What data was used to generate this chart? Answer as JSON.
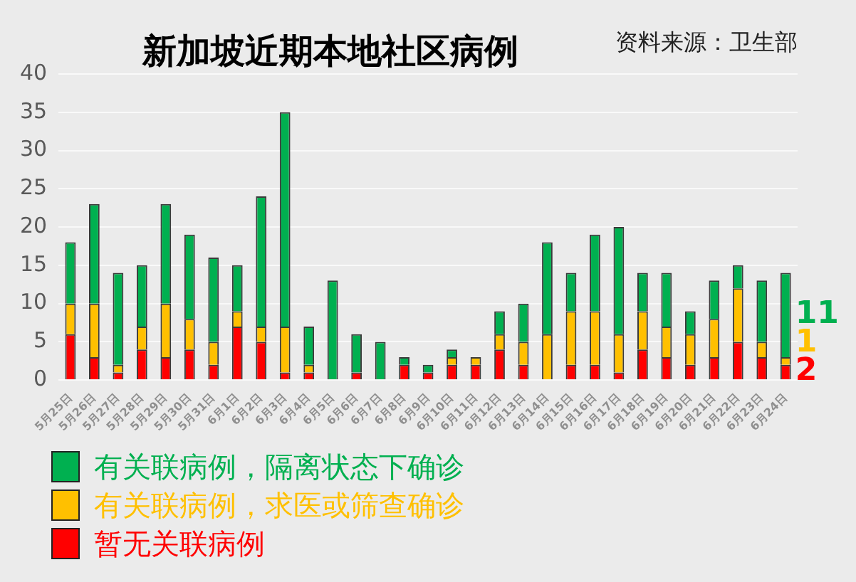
{
  "chart_data": {
    "type": "bar",
    "title": "新加坡近期本地社区病例",
    "annotations": [
      "资料来源：卫生部"
    ],
    "categories": [
      "5月25日",
      "5月26日",
      "5月27日",
      "5月28日",
      "5月29日",
      "5月30日",
      "5月31日",
      "6月1日",
      "6月2日",
      "6月3日",
      "6月4日",
      "6月5日",
      "6月6日",
      "6月7日",
      "6月8日",
      "6月9日",
      "6月10日",
      "6月11日",
      "6月12日",
      "6月13日",
      "6月14日",
      "6月15日",
      "6月16日",
      "6月17日",
      "6月18日",
      "6月19日",
      "6月20日",
      "6月21日",
      "6月22日",
      "6月23日",
      "6月24日"
    ],
    "stacked": true,
    "series": [
      {
        "name": "暂无关联病例",
        "color": "#ff0000",
        "values": [
          6,
          3,
          1,
          4,
          3,
          4,
          2,
          7,
          5,
          1,
          1,
          0,
          1,
          0,
          2,
          1,
          2,
          2,
          4,
          2,
          0,
          2,
          2,
          1,
          4,
          3,
          2,
          3,
          5,
          3,
          2
        ],
        "value_labels": [
          null,
          null,
          null,
          null,
          null,
          null,
          null,
          null,
          null,
          null,
          null,
          null,
          null,
          null,
          null,
          null,
          null,
          null,
          null,
          null,
          null,
          null,
          null,
          null,
          null,
          null,
          null,
          null,
          null,
          null,
          "2"
        ]
      },
      {
        "name": "有关联病例，求医或筛查确诊",
        "color": "#ffc000",
        "values": [
          4,
          7,
          1,
          3,
          7,
          4,
          3,
          2,
          2,
          6,
          1,
          0,
          0,
          0,
          0,
          0,
          1,
          1,
          2,
          3,
          6,
          7,
          7,
          5,
          5,
          4,
          4,
          5,
          7,
          2,
          1
        ],
        "value_labels": [
          null,
          null,
          null,
          null,
          null,
          null,
          null,
          null,
          null,
          null,
          null,
          null,
          null,
          null,
          null,
          null,
          null,
          null,
          null,
          null,
          null,
          null,
          null,
          null,
          null,
          null,
          null,
          null,
          null,
          null,
          "1"
        ]
      },
      {
        "name": "有关联病例，隔离状态下确诊",
        "color": "#00b050",
        "values": [
          8,
          13,
          12,
          8,
          13,
          11,
          11,
          6,
          17,
          28,
          5,
          13,
          5,
          5,
          1,
          1,
          1,
          0,
          3,
          5,
          12,
          5,
          10,
          14,
          5,
          7,
          3,
          5,
          3,
          8,
          11
        ],
        "value_labels": [
          null,
          null,
          null,
          null,
          null,
          null,
          null,
          null,
          null,
          null,
          null,
          null,
          null,
          null,
          null,
          null,
          null,
          null,
          null,
          null,
          null,
          null,
          null,
          null,
          null,
          null,
          null,
          null,
          null,
          null,
          "11"
        ]
      }
    ],
    "ylim": [
      0,
      40
    ],
    "yticks": [
      0,
      5,
      10,
      15,
      20,
      25,
      30,
      35,
      40
    ],
    "grid": "y",
    "legend": "bottom left"
  }
}
